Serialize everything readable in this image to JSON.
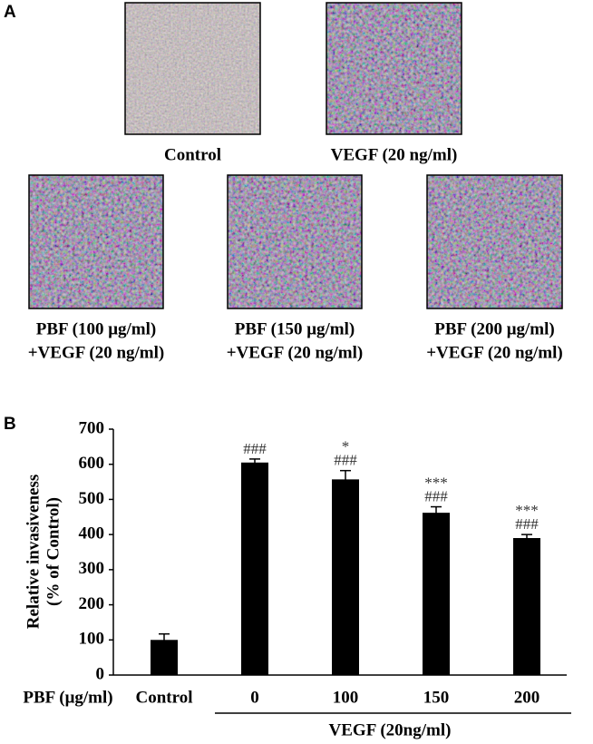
{
  "panel_a": {
    "label": "A",
    "images": [
      {
        "caption": [
          "Control"
        ]
      },
      {
        "caption": [
          "VEGF (20 ng/ml)"
        ]
      },
      {
        "caption": [
          "PBF (100 μg/ml)",
          "+VEGF (20 ng/ml)"
        ]
      },
      {
        "caption": [
          "PBF (150 μg/ml)",
          "+VEGF (20 ng/ml)"
        ]
      },
      {
        "caption": [
          "PBF (200 μg/ml)",
          "+VEGF (20 ng/ml)"
        ]
      }
    ]
  },
  "chart_data": {
    "type": "bar",
    "panel_label": "B",
    "y_label": [
      "Relative invasiveness",
      "(% of Control)"
    ],
    "x_label": "PBF (μg/ml)",
    "group_label": "VEGF (20ng/ml)",
    "categories": [
      "Control",
      "0",
      "100",
      "150",
      "200"
    ],
    "values": [
      100,
      605,
      557,
      462,
      390
    ],
    "errors": [
      17,
      10,
      25,
      17,
      10
    ],
    "annotations": [
      null,
      [
        "###"
      ],
      [
        "*",
        "###"
      ],
      [
        "***",
        "###"
      ],
      [
        "***",
        "###"
      ]
    ],
    "color": "#000000",
    "ylim": [
      0,
      700
    ],
    "yticks": [
      0,
      100,
      200,
      300,
      400,
      500,
      600,
      700
    ]
  }
}
